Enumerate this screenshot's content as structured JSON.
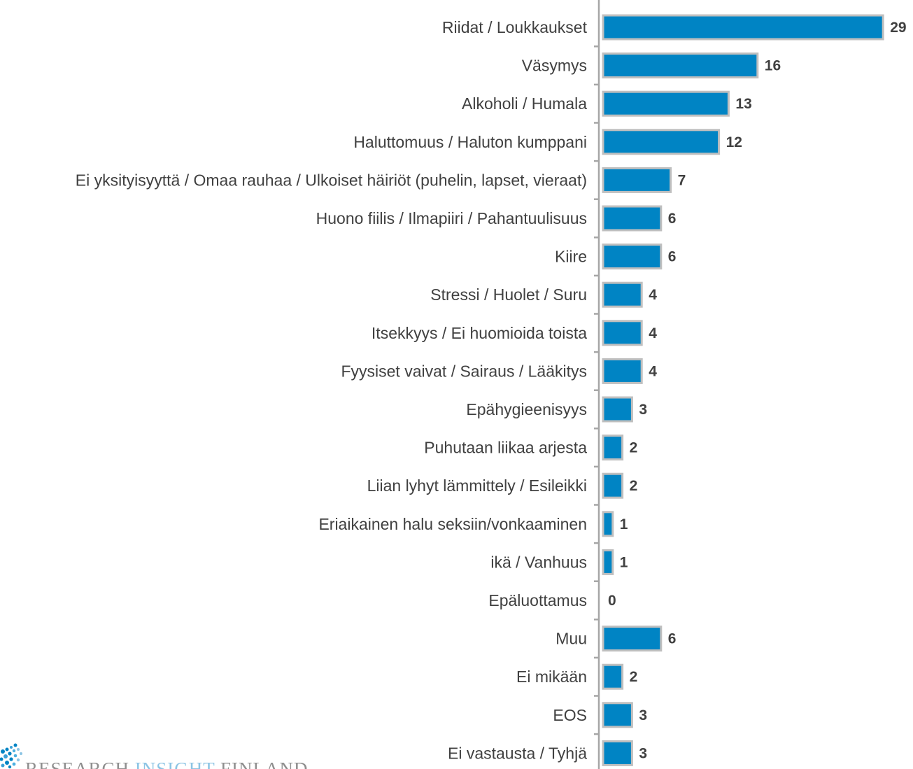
{
  "chart_data": {
    "type": "bar",
    "orientation": "horizontal",
    "title": "",
    "xlabel": "",
    "ylabel": "",
    "xlim": [
      0,
      29
    ],
    "grid": false,
    "legend": "none",
    "categories": [
      "Riidat / Loukkaukset",
      "Väsymys",
      "Alkoholi / Humala",
      "Haluttomuus / Haluton kumppani",
      "Ei yksityisyyttä / Omaa rauhaa / Ulkoiset häiriöt (puhelin, lapset, vieraat)",
      "Huono fiilis / Ilmapiiri / Pahantuulisuus ",
      "Kiire",
      "Stressi / Huolet / Suru",
      "Itsekkyys / Ei huomioida toista",
      "Fyysiset vaivat / Sairaus / Lääkitys",
      "Epähygieenisyys",
      "Puhutaan liikaa arjesta ",
      "Liian lyhyt lämmittely / Esileikki",
      "Eriaikainen halu seksiin/vonkaaminen",
      "ikä / Vanhuus",
      "Epäluottamus",
      "Muu",
      "Ei mikään",
      "EOS ",
      "Ei vastausta / Tyhjä"
    ],
    "values": [
      29,
      16,
      13,
      12,
      7,
      6,
      6,
      4,
      4,
      4,
      3,
      2,
      2,
      1,
      1,
      0,
      6,
      2,
      3,
      3
    ],
    "colors": {
      "bar_fill": "#0084c4",
      "bar_border": "#bfbfbf",
      "axis": "#a6a6a6",
      "text": "#404040"
    }
  },
  "logo": {
    "word1": "RESEARCH",
    "word2": "INSIGHT",
    "word3": "FINLAND",
    "icon": "dot-cluster-icon"
  }
}
